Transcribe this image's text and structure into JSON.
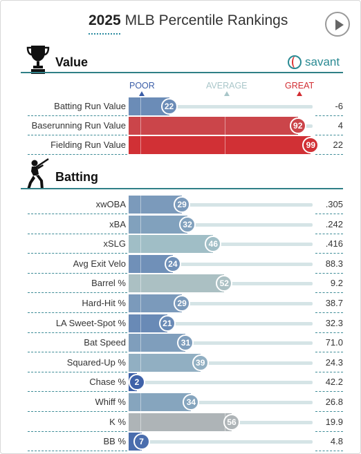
{
  "header": {
    "title_year": "2025",
    "title_rest": "MLB Percentile Rankings",
    "play_icon": "play-icon"
  },
  "value_section": {
    "title": "Value",
    "icon": "trophy-icon",
    "brand": "savant",
    "brand_icon": "baseball-icon"
  },
  "legend": {
    "poor": "POOR",
    "average": "AVERAGE",
    "great": "GREAT",
    "colors": {
      "poor": "#3b5ea8",
      "average": "#a9c6c9",
      "great": "#d22d32"
    }
  },
  "value_rows": [
    {
      "label": "Batting Run Value",
      "percentile": "22",
      "value": "-6"
    },
    {
      "label": "Baserunning Run Value",
      "percentile": "92",
      "value": "4"
    },
    {
      "label": "Fielding Run Value",
      "percentile": "99",
      "value": "22"
    }
  ],
  "batting_section": {
    "title": "Batting",
    "icon": "batter-icon"
  },
  "batting_rows": [
    {
      "label": "xwOBA",
      "percentile": "29",
      "value": ".305"
    },
    {
      "label": "xBA",
      "percentile": "32",
      "value": ".242"
    },
    {
      "label": "xSLG",
      "percentile": "46",
      "value": ".416"
    },
    {
      "label": "Avg Exit Velo",
      "percentile": "24",
      "value": "88.3"
    },
    {
      "label": "Barrel %",
      "percentile": "52",
      "value": "9.2"
    },
    {
      "label": "Hard-Hit %",
      "percentile": "29",
      "value": "38.7"
    },
    {
      "label": "LA Sweet-Spot %",
      "percentile": "21",
      "value": "32.3"
    },
    {
      "label": "Bat Speed",
      "percentile": "31",
      "value": "71.0"
    },
    {
      "label": "Squared-Up %",
      "percentile": "39",
      "value": "24.3"
    },
    {
      "label": "Chase %",
      "percentile": "2",
      "value": "42.2"
    },
    {
      "label": "Whiff %",
      "percentile": "34",
      "value": "26.8"
    },
    {
      "label": "K %",
      "percentile": "56",
      "value": "19.9"
    },
    {
      "label": "BB %",
      "percentile": "7",
      "value": "4.8"
    }
  ]
}
